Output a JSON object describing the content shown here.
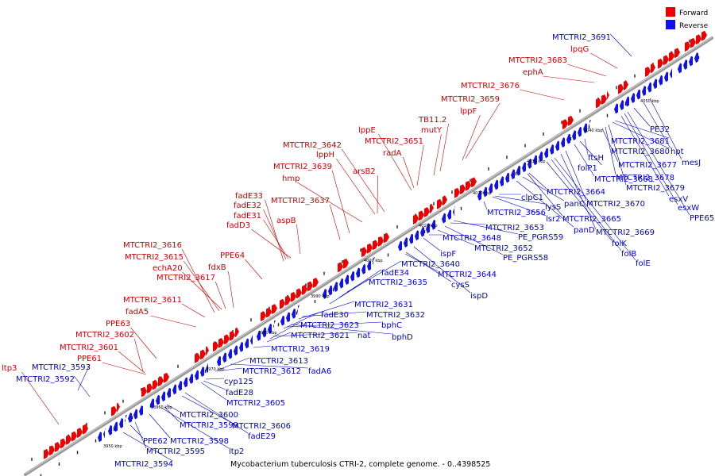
{
  "caption": "Mycobacterium tuberculosis CTRI-2, complete genome. - 0..4398525",
  "legend": [
    {
      "label": "Forward",
      "color": "#ee0000"
    },
    {
      "label": "Reverse",
      "color": "#1111ee"
    }
  ],
  "colors": {
    "forward": "#ee0000",
    "reverse": "#1111ee",
    "backbone": "#999999",
    "leader_fwd": "#cc0000",
    "leader_rev": "#0000cc"
  },
  "scale_labels": [
    "3950 kbp",
    "3960 kbp",
    "3970 kbp",
    "3980 kbp",
    "3990 kbp",
    "4000 kbp",
    "4010 kbp",
    "4020 kbp",
    "4030 kbp",
    "4040 kbp",
    "4050 kbp"
  ],
  "forward_labels": [
    "ltp3",
    "MTCTRI2_3602",
    "MTCTRI2_3601",
    "PPE61",
    "PPE63",
    "fadA5",
    "MTCTRI2_3611",
    "MTCTRI2_3616",
    "MTCTRI2_3615",
    "echA20",
    "MTCTRI2_3617",
    "fdxB",
    "PPE64",
    "fadE33",
    "fadE32",
    "fadE31",
    "fadD3",
    "aspB",
    "MTCTRI2_3637",
    "MTCTRI2_3639",
    "hmp",
    "lppH",
    "arsB2",
    "MTCTRI2_3642",
    "lppE",
    "radA",
    "MTCTRI2_3651",
    "mutY",
    "TB11.2",
    "lppF",
    "MTCTRI2_3659",
    "MTCTRI2_3676",
    "ephA",
    "MTCTRI2_3683",
    "lpqG"
  ],
  "reverse_labels": [
    "MTCTRI2_3593",
    "MTCTRI2_3592",
    "MTCTRI2_3594",
    "PPE62",
    "MTCTRI2_3595",
    "MTCTRI2_3598",
    "ltp2",
    "MTCTRI2_3599",
    "MTCTRI2_3600",
    "MTCTRI2_3606",
    "fadE29",
    "MTCTRI2_3605",
    "fadE28",
    "cyp125",
    "MTCTRI2_3612",
    "MTCTRI2_3613",
    "fadA6",
    "MTCTRI2_3619",
    "MTCTRI2_3621",
    "MTCTRI2_3623",
    "nat",
    "fadE30",
    "bphC",
    "bphD",
    "MTCTRI2_3631",
    "MTCTRI2_3632",
    "MTCTRI2_3635",
    "fadE34",
    "MTCTRI2_3640",
    "MTCTRI2_3644",
    "cysS",
    "ispD",
    "ispF",
    "MTCTRI2_3648",
    "MTCTRI2_3652",
    "PE_PGRS58",
    "MTCTRI2_3653",
    "PE_PGRS59",
    "MTCTRI2_3656",
    "lsr2",
    "lysS",
    "clpC1",
    "panD",
    "panC",
    "MTCTRI2_3665",
    "MTCTRI2_3664",
    "folK",
    "folB",
    "folE",
    "MTCTRI2_3669",
    "MTCTRI2_3670",
    "MTCTRI2_3668",
    "folP1",
    "ftsH",
    "MTCTRI2_3677",
    "MTCTRI2_3678",
    "MTCTRI2_3679",
    "esxV",
    "esxW",
    "PPE65",
    "MTCTRI2_3680",
    "MTCTRI2_3681",
    "PE32",
    "hpt",
    "mesJ",
    "MTCTRI2_3691"
  ]
}
